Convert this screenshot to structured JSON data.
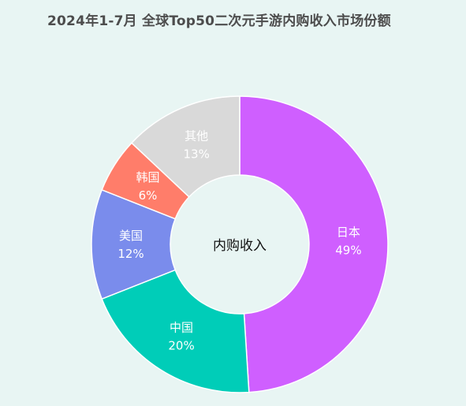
{
  "title": "2024年1-7月 全球Top50二次元手游内购收入市场份额",
  "center_label": "内购收入",
  "chart_data": {
    "type": "pie",
    "donut": true,
    "title": "2024年1-7月 全球Top50二次元手游内购收入市场份额",
    "center_text": "内购收入",
    "start": "12 o'clock",
    "direction": "clockwise",
    "slices": [
      {
        "label": "日本",
        "value": 49,
        "value_label": "49%",
        "color": "#cf5fff"
      },
      {
        "label": "中国",
        "value": 20,
        "value_label": "20%",
        "color": "#00cdb8"
      },
      {
        "label": "美国",
        "value": 12,
        "value_label": "12%",
        "color": "#7a8cec"
      },
      {
        "label": "韩国",
        "value": 6,
        "value_label": "6%",
        "color": "#ff7d6a"
      },
      {
        "label": "其他",
        "value": 13,
        "value_label": "13%",
        "color": "#d9d9d9"
      }
    ]
  }
}
